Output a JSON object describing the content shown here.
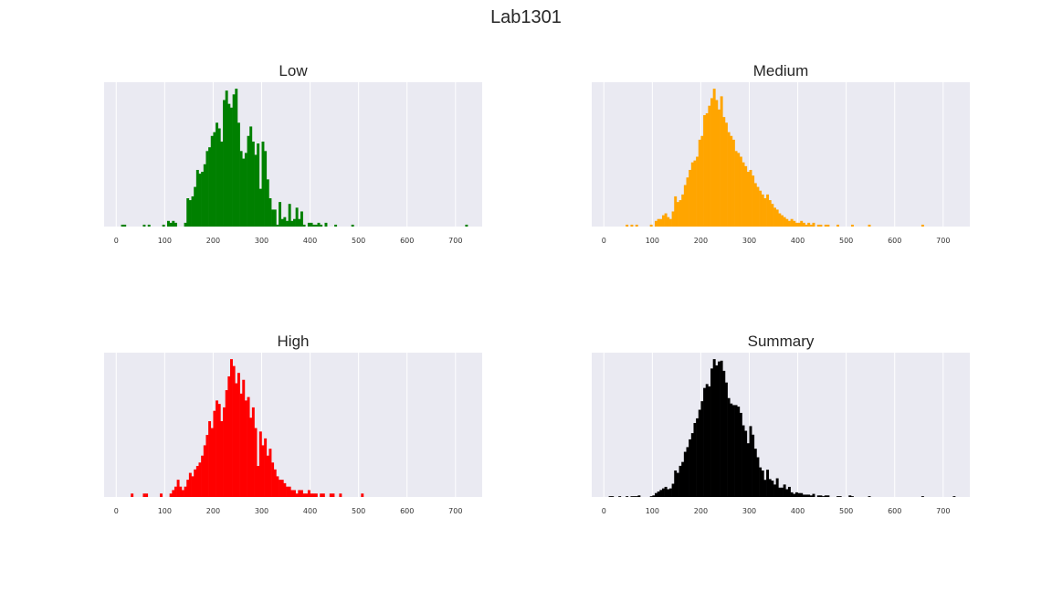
{
  "figure": {
    "title": "Lab1301"
  },
  "chart_data": [
    {
      "type": "bar",
      "title": "Low",
      "color": "#008000",
      "xlim": [
        -25,
        755
      ],
      "xticks": [
        0,
        100,
        200,
        300,
        400,
        500,
        600,
        700
      ],
      "bin_width": 5,
      "grid": true,
      "y_axis_visible": false,
      "bins": [
        [
          10,
          1
        ],
        [
          15,
          1
        ],
        [
          55,
          1
        ],
        [
          65,
          1
        ],
        [
          95,
          1
        ],
        [
          105,
          3
        ],
        [
          110,
          2
        ],
        [
          115,
          3
        ],
        [
          120,
          2
        ],
        [
          140,
          2
        ],
        [
          145,
          15
        ],
        [
          150,
          14
        ],
        [
          155,
          16
        ],
        [
          160,
          21
        ],
        [
          165,
          30
        ],
        [
          170,
          28
        ],
        [
          175,
          29
        ],
        [
          180,
          33
        ],
        [
          185,
          40
        ],
        [
          190,
          42
        ],
        [
          195,
          48
        ],
        [
          200,
          50
        ],
        [
          205,
          55
        ],
        [
          210,
          52
        ],
        [
          215,
          45
        ],
        [
          220,
          67
        ],
        [
          225,
          72
        ],
        [
          230,
          65
        ],
        [
          235,
          63
        ],
        [
          240,
          70
        ],
        [
          245,
          73
        ],
        [
          250,
          55
        ],
        [
          255,
          40
        ],
        [
          260,
          36
        ],
        [
          265,
          39
        ],
        [
          270,
          48
        ],
        [
          275,
          53
        ],
        [
          280,
          45
        ],
        [
          285,
          38
        ],
        [
          290,
          44
        ],
        [
          295,
          20
        ],
        [
          300,
          45
        ],
        [
          305,
          40
        ],
        [
          310,
          25
        ],
        [
          315,
          15
        ],
        [
          320,
          9
        ],
        [
          325,
          9
        ],
        [
          330,
          1
        ],
        [
          335,
          13
        ],
        [
          340,
          4
        ],
        [
          345,
          5
        ],
        [
          350,
          3
        ],
        [
          355,
          12
        ],
        [
          360,
          3
        ],
        [
          365,
          4
        ],
        [
          370,
          10
        ],
        [
          375,
          4
        ],
        [
          380,
          8
        ],
        [
          385,
          1
        ],
        [
          395,
          2
        ],
        [
          400,
          2
        ],
        [
          405,
          1
        ],
        [
          410,
          1
        ],
        [
          415,
          2
        ],
        [
          420,
          1
        ],
        [
          430,
          2
        ],
        [
          450,
          1
        ],
        [
          485,
          1
        ],
        [
          720,
          1
        ]
      ]
    },
    {
      "type": "bar",
      "title": "Medium",
      "color": "#ffa500",
      "xlim": [
        -25,
        755
      ],
      "xticks": [
        0,
        100,
        200,
        300,
        400,
        500,
        600,
        700
      ],
      "bin_width": 5,
      "grid": true,
      "y_axis_visible": false,
      "bins": [
        [
          45,
          1
        ],
        [
          55,
          1
        ],
        [
          65,
          1
        ],
        [
          95,
          1
        ],
        [
          105,
          3
        ],
        [
          110,
          4
        ],
        [
          115,
          4
        ],
        [
          120,
          6
        ],
        [
          125,
          7
        ],
        [
          130,
          5
        ],
        [
          135,
          4
        ],
        [
          140,
          8
        ],
        [
          145,
          16
        ],
        [
          150,
          13
        ],
        [
          155,
          14
        ],
        [
          160,
          17
        ],
        [
          165,
          22
        ],
        [
          170,
          26
        ],
        [
          175,
          30
        ],
        [
          180,
          34
        ],
        [
          185,
          35
        ],
        [
          190,
          37
        ],
        [
          195,
          46
        ],
        [
          200,
          48
        ],
        [
          205,
          59
        ],
        [
          210,
          60
        ],
        [
          215,
          64
        ],
        [
          220,
          68
        ],
        [
          225,
          73
        ],
        [
          230,
          67
        ],
        [
          235,
          62
        ],
        [
          240,
          69
        ],
        [
          245,
          58
        ],
        [
          250,
          55
        ],
        [
          255,
          50
        ],
        [
          260,
          48
        ],
        [
          265,
          46
        ],
        [
          270,
          40
        ],
        [
          275,
          39
        ],
        [
          280,
          37
        ],
        [
          285,
          34
        ],
        [
          290,
          32
        ],
        [
          295,
          29
        ],
        [
          300,
          30
        ],
        [
          305,
          27
        ],
        [
          310,
          23
        ],
        [
          315,
          21
        ],
        [
          320,
          19
        ],
        [
          325,
          17
        ],
        [
          330,
          15
        ],
        [
          335,
          17
        ],
        [
          340,
          14
        ],
        [
          345,
          12
        ],
        [
          350,
          10
        ],
        [
          355,
          9
        ],
        [
          360,
          7
        ],
        [
          365,
          6
        ],
        [
          370,
          5
        ],
        [
          375,
          4
        ],
        [
          380,
          3
        ],
        [
          385,
          4
        ],
        [
          390,
          3
        ],
        [
          395,
          2
        ],
        [
          400,
          2
        ],
        [
          405,
          3
        ],
        [
          410,
          2
        ],
        [
          415,
          1
        ],
        [
          420,
          2
        ],
        [
          425,
          1
        ],
        [
          430,
          2
        ],
        [
          440,
          1
        ],
        [
          445,
          1
        ],
        [
          455,
          1
        ],
        [
          460,
          1
        ],
        [
          480,
          1
        ],
        [
          510,
          1
        ],
        [
          545,
          1
        ],
        [
          655,
          1
        ]
      ]
    },
    {
      "type": "bar",
      "title": "High",
      "color": "#ff0000",
      "xlim": [
        -25,
        755
      ],
      "xticks": [
        0,
        100,
        200,
        300,
        400,
        500,
        600,
        700
      ],
      "bin_width": 5,
      "grid": true,
      "y_axis_visible": false,
      "bins": [
        [
          30,
          1
        ],
        [
          55,
          1
        ],
        [
          60,
          1
        ],
        [
          90,
          1
        ],
        [
          110,
          1
        ],
        [
          115,
          2
        ],
        [
          120,
          3
        ],
        [
          125,
          5
        ],
        [
          130,
          3
        ],
        [
          135,
          2
        ],
        [
          140,
          3
        ],
        [
          145,
          5
        ],
        [
          150,
          7
        ],
        [
          155,
          6
        ],
        [
          160,
          8
        ],
        [
          165,
          9
        ],
        [
          170,
          10
        ],
        [
          175,
          12
        ],
        [
          180,
          15
        ],
        [
          185,
          18
        ],
        [
          190,
          22
        ],
        [
          195,
          20
        ],
        [
          200,
          25
        ],
        [
          205,
          28
        ],
        [
          210,
          27
        ],
        [
          215,
          22
        ],
        [
          220,
          26
        ],
        [
          225,
          31
        ],
        [
          230,
          35
        ],
        [
          235,
          40
        ],
        [
          240,
          38
        ],
        [
          245,
          33
        ],
        [
          250,
          36
        ],
        [
          255,
          30
        ],
        [
          260,
          34
        ],
        [
          265,
          28
        ],
        [
          270,
          29
        ],
        [
          275,
          23
        ],
        [
          280,
          26
        ],
        [
          285,
          20
        ],
        [
          290,
          9
        ],
        [
          295,
          19
        ],
        [
          300,
          15
        ],
        [
          305,
          17
        ],
        [
          310,
          12
        ],
        [
          315,
          14
        ],
        [
          320,
          10
        ],
        [
          325,
          8
        ],
        [
          330,
          6
        ],
        [
          335,
          5
        ],
        [
          340,
          5
        ],
        [
          345,
          4
        ],
        [
          350,
          3
        ],
        [
          355,
          3
        ],
        [
          360,
          2
        ],
        [
          365,
          2
        ],
        [
          370,
          1
        ],
        [
          375,
          2
        ],
        [
          380,
          2
        ],
        [
          385,
          1
        ],
        [
          390,
          1
        ],
        [
          395,
          2
        ],
        [
          400,
          1
        ],
        [
          405,
          1
        ],
        [
          410,
          1
        ],
        [
          420,
          1
        ],
        [
          425,
          1
        ],
        [
          440,
          1
        ],
        [
          445,
          1
        ],
        [
          460,
          1
        ],
        [
          505,
          1
        ]
      ]
    },
    {
      "type": "bar",
      "title": "Summary",
      "color": "#000000",
      "xlim": [
        -25,
        755
      ],
      "xticks": [
        0,
        100,
        200,
        300,
        400,
        500,
        600,
        700
      ],
      "bin_width": 5,
      "grid": true,
      "y_axis_visible": false,
      "bins": [
        [
          10,
          1
        ],
        [
          15,
          1
        ],
        [
          30,
          1
        ],
        [
          45,
          1
        ],
        [
          55,
          1
        ],
        [
          60,
          1
        ],
        [
          65,
          1
        ],
        [
          70,
          2
        ],
        [
          95,
          1
        ],
        [
          100,
          2
        ],
        [
          105,
          5
        ],
        [
          110,
          7
        ],
        [
          115,
          9
        ],
        [
          120,
          11
        ],
        [
          125,
          13
        ],
        [
          130,
          10
        ],
        [
          135,
          11
        ],
        [
          140,
          17
        ],
        [
          145,
          34
        ],
        [
          150,
          31
        ],
        [
          155,
          40
        ],
        [
          160,
          45
        ],
        [
          165,
          58
        ],
        [
          170,
          64
        ],
        [
          175,
          74
        ],
        [
          180,
          82
        ],
        [
          185,
          95
        ],
        [
          190,
          101
        ],
        [
          195,
          112
        ],
        [
          200,
          123
        ],
        [
          205,
          140
        ],
        [
          210,
          145
        ],
        [
          215,
          142
        ],
        [
          220,
          165
        ],
        [
          225,
          177
        ],
        [
          230,
          169
        ],
        [
          235,
          174
        ],
        [
          240,
          175
        ],
        [
          245,
          162
        ],
        [
          250,
          147
        ],
        [
          255,
          127
        ],
        [
          260,
          120
        ],
        [
          265,
          118
        ],
        [
          270,
          118
        ],
        [
          275,
          116
        ],
        [
          280,
          108
        ],
        [
          285,
          92
        ],
        [
          290,
          85
        ],
        [
          295,
          69
        ],
        [
          300,
          91
        ],
        [
          305,
          80
        ],
        [
          310,
          62
        ],
        [
          315,
          51
        ],
        [
          320,
          38
        ],
        [
          325,
          34
        ],
        [
          330,
          22
        ],
        [
          335,
          35
        ],
        [
          340,
          23
        ],
        [
          345,
          21
        ],
        [
          350,
          16
        ],
        [
          355,
          24
        ],
        [
          360,
          12
        ],
        [
          365,
          12
        ],
        [
          370,
          16
        ],
        [
          375,
          10
        ],
        [
          380,
          13
        ],
        [
          385,
          6
        ],
        [
          390,
          4
        ],
        [
          395,
          6
        ],
        [
          400,
          5
        ],
        [
          405,
          5
        ],
        [
          410,
          3
        ],
        [
          415,
          3
        ],
        [
          420,
          3
        ],
        [
          425,
          2
        ],
        [
          430,
          4
        ],
        [
          440,
          2
        ],
        [
          445,
          2
        ],
        [
          450,
          1
        ],
        [
          455,
          2
        ],
        [
          460,
          2
        ],
        [
          480,
          1
        ],
        [
          485,
          1
        ],
        [
          505,
          2
        ],
        [
          510,
          1
        ],
        [
          545,
          1
        ],
        [
          655,
          1
        ],
        [
          720,
          1
        ]
      ]
    }
  ]
}
